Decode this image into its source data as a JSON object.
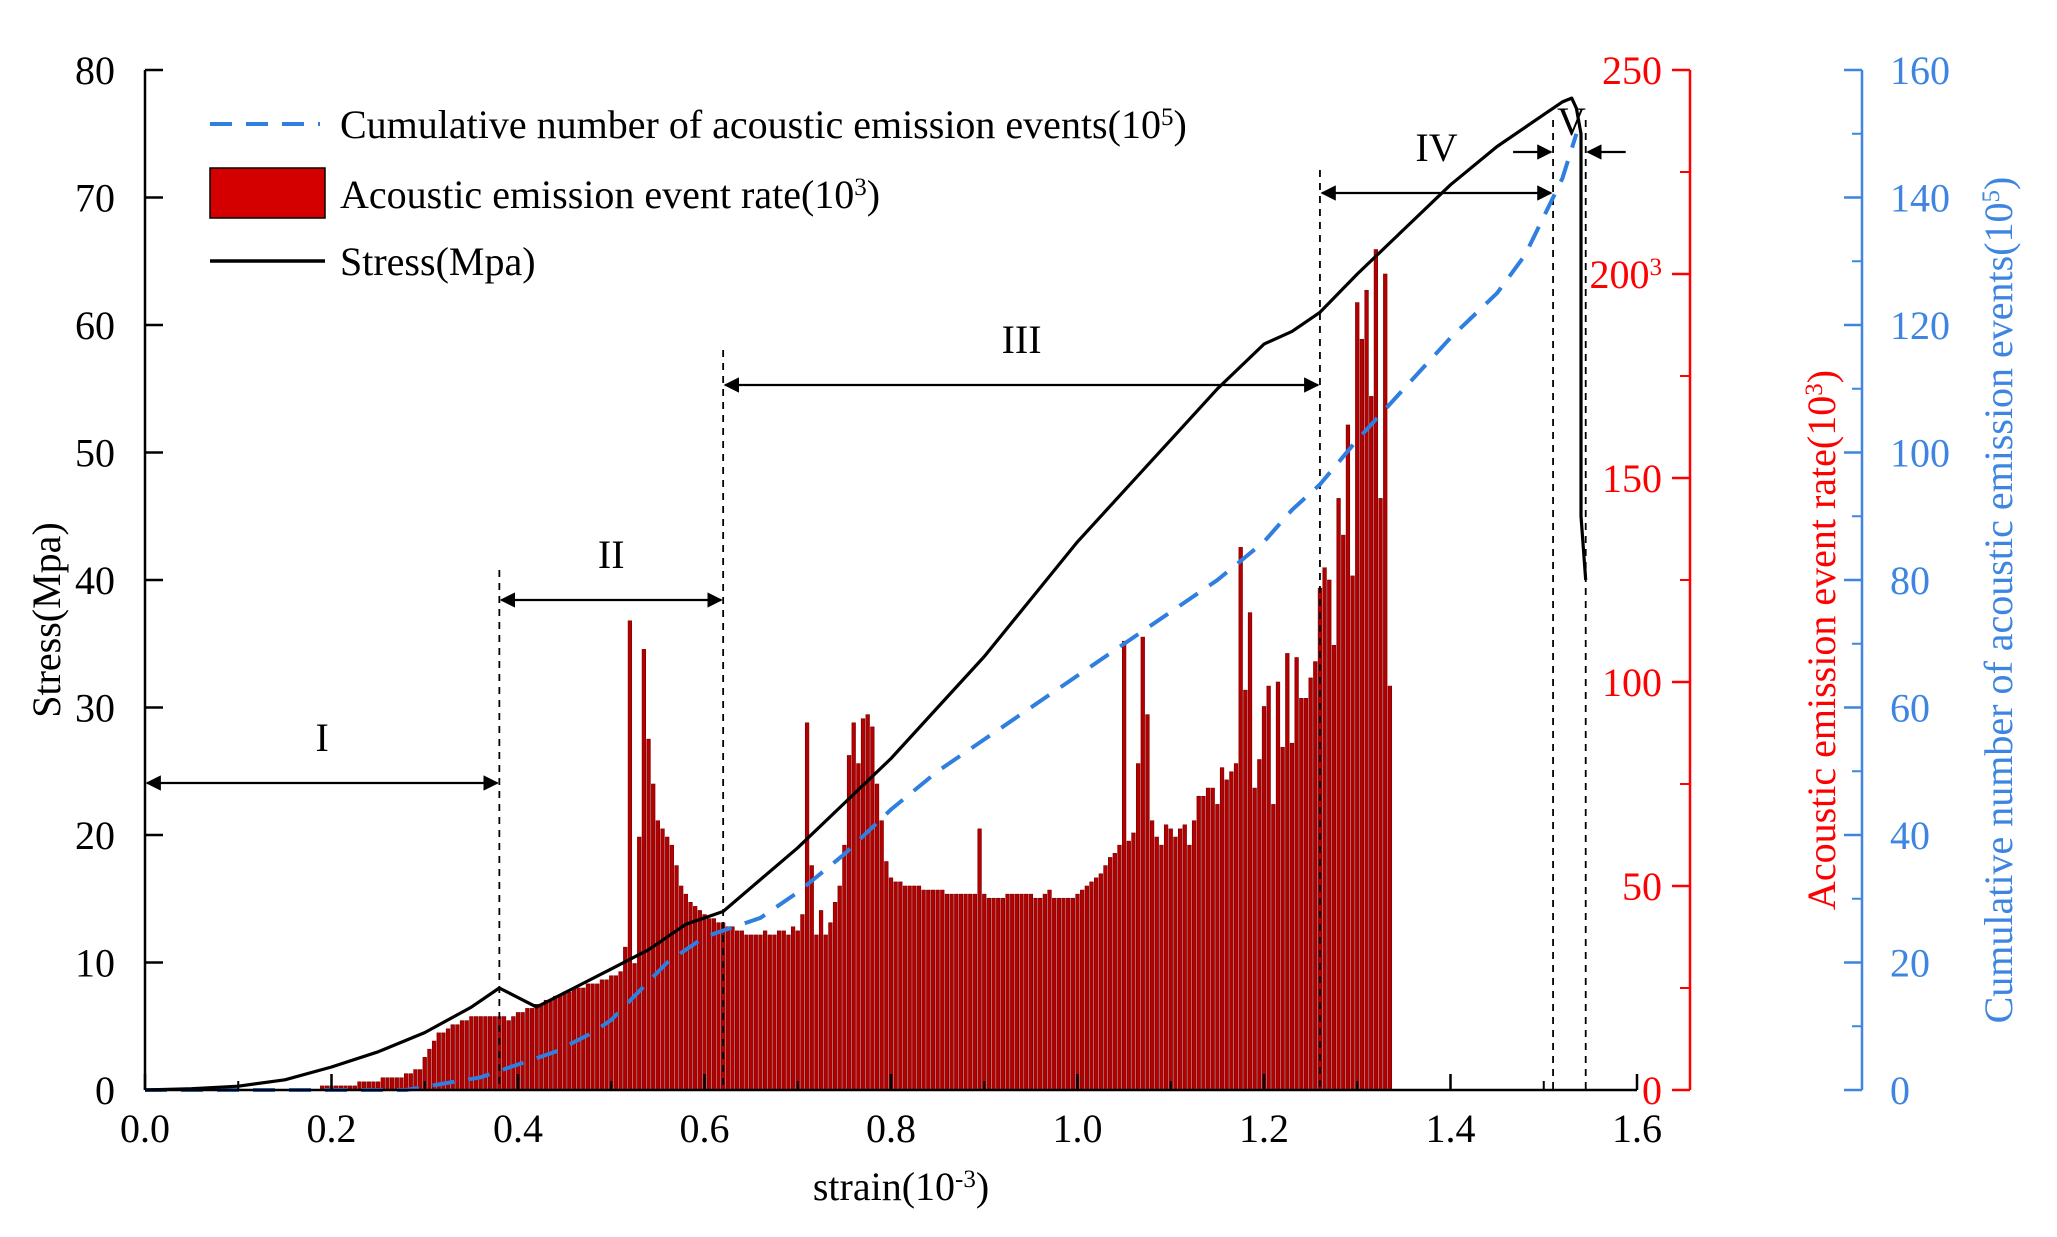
{
  "chart_data": {
    "type": "bar+line",
    "xlabel": "strain(10",
    "xlabel_exp": "-3",
    "xlabel_tail": ")",
    "xlim": [
      0,
      1.6
    ],
    "x_ticks": [
      "0.0",
      "0.2",
      "0.4",
      "0.6",
      "0.8",
      "1.0",
      "1.2",
      "1.4",
      "1.6"
    ],
    "x_tick_values": [
      0,
      0.2,
      0.4,
      0.6,
      0.8,
      1.0,
      1.2,
      1.4,
      1.6
    ],
    "axes": {
      "stress": {
        "label": "Stress(Mpa)",
        "ylim": [
          0,
          80
        ],
        "ticks": [
          "0",
          "10",
          "20",
          "30",
          "40",
          "50",
          "60",
          "70",
          "80"
        ],
        "tick_values": [
          0,
          10,
          20,
          30,
          40,
          50,
          60,
          70,
          80
        ],
        "color": "#000000"
      },
      "rate": {
        "label": "Acoustic emission event rate(10",
        "label_exp": "3",
        "label_tail": ")",
        "top_label": "200",
        "top_label_exp": "3",
        "ylim": [
          0,
          250
        ],
        "ticks": [
          "0",
          "50",
          "100",
          "150",
          "200",
          "250"
        ],
        "tick_values": [
          0,
          50,
          100,
          150,
          200,
          250
        ],
        "color": "#ff0000"
      },
      "cumulative": {
        "label": "Cumulative number of acoustic emission events(10",
        "label_exp": "5",
        "label_tail": ")",
        "ylim": [
          0,
          160
        ],
        "ticks": [
          "0",
          "20",
          "40",
          "60",
          "80",
          "100",
          "120",
          "140",
          "160"
        ],
        "tick_values": [
          0,
          20,
          40,
          60,
          80,
          100,
          120,
          140,
          160
        ],
        "color": "#3d85e0"
      }
    },
    "legend": [
      {
        "text": "Cumulative number of acoustic emission events(10",
        "exp": "5",
        "tail": ")",
        "kind": "dashed-line",
        "color": "#2f7fe0"
      },
      {
        "text": "Acoustic emission event rate(10",
        "exp": "3",
        "tail": ")",
        "kind": "bar",
        "color": "#d40000"
      },
      {
        "text": "Stress(Mpa)",
        "kind": "line",
        "color": "#000000"
      }
    ],
    "stages": [
      {
        "label": "I",
        "from": 0.0,
        "to": 0.38
      },
      {
        "label": "II",
        "from": 0.38,
        "to": 0.62
      },
      {
        "label": "III",
        "from": 0.62,
        "to": 1.26
      },
      {
        "label": "IV",
        "from": 1.26,
        "to": 1.51
      },
      {
        "label": "V",
        "from": 1.51,
        "to": 1.545
      }
    ],
    "series": [
      {
        "name": "Stress(Mpa)",
        "axis": "stress",
        "color": "#000000",
        "x": [
          0,
          0.05,
          0.1,
          0.15,
          0.2,
          0.25,
          0.3,
          0.35,
          0.38,
          0.42,
          0.46,
          0.5,
          0.54,
          0.58,
          0.62,
          0.66,
          0.7,
          0.75,
          0.8,
          0.85,
          0.9,
          0.95,
          1.0,
          1.05,
          1.1,
          1.15,
          1.2,
          1.23,
          1.26,
          1.3,
          1.35,
          1.4,
          1.45,
          1.5,
          1.52,
          1.53,
          1.535,
          1.54,
          1.54,
          1.545
        ],
        "y": [
          0,
          0.1,
          0.3,
          0.8,
          1.8,
          3.0,
          4.5,
          6.5,
          8.0,
          6.5,
          8.0,
          9.5,
          11.0,
          13.0,
          14.0,
          16.5,
          19.0,
          22.5,
          26.0,
          30.0,
          34.0,
          38.5,
          43.0,
          47.0,
          51.0,
          55.0,
          58.5,
          59.5,
          61.0,
          64.0,
          67.5,
          71.0,
          74.0,
          76.5,
          77.5,
          77.8,
          77.0,
          75.0,
          45.0,
          40.0
        ]
      },
      {
        "name": "Cumulative number of acoustic emission events(10^5)",
        "axis": "cumulative",
        "color": "#2f7fe0",
        "x": [
          0,
          0.1,
          0.2,
          0.28,
          0.32,
          0.36,
          0.4,
          0.44,
          0.48,
          0.5,
          0.52,
          0.56,
          0.6,
          0.62,
          0.66,
          0.7,
          0.75,
          0.8,
          0.85,
          0.9,
          0.95,
          1.0,
          1.05,
          1.1,
          1.15,
          1.2,
          1.23,
          1.26,
          1.3,
          1.35,
          1.4,
          1.45,
          1.48,
          1.5,
          1.52,
          1.535
        ],
        "y": [
          0,
          0,
          0,
          0,
          1,
          2,
          4,
          6,
          9,
          11,
          14,
          20,
          24,
          25,
          27,
          31,
          37,
          44,
          50,
          55,
          60,
          65,
          70,
          75,
          80,
          86,
          91,
          95,
          102,
          110,
          118,
          125,
          131,
          137,
          143,
          150
        ]
      },
      {
        "name": "Acoustic emission event rate(10^3)",
        "axis": "rate",
        "color": "#b30000",
        "x_start": 0.0,
        "x_step": 0.005,
        "values": [
          0,
          0,
          0,
          0,
          0,
          0,
          0,
          0,
          0,
          0,
          0,
          0,
          0,
          0,
          0,
          0,
          0,
          0,
          0,
          0,
          0,
          0,
          0,
          0,
          0,
          0,
          0,
          0,
          0,
          0,
          0,
          0,
          0,
          0,
          0,
          0,
          0,
          0,
          1,
          1,
          1,
          1,
          1,
          1,
          1,
          1,
          2,
          2,
          2,
          2,
          2,
          3,
          3,
          3,
          3,
          3,
          4,
          4,
          5,
          5,
          8,
          10,
          12,
          14,
          14,
          15,
          16,
          16,
          17,
          17,
          18,
          18,
          18,
          18,
          18,
          18,
          18,
          18,
          17,
          18,
          19,
          19,
          20,
          20,
          21,
          21,
          22,
          22,
          23,
          23,
          24,
          24,
          25,
          25,
          25,
          26,
          26,
          26,
          27,
          27,
          28,
          28,
          29,
          35,
          115,
          31,
          62,
          108,
          86,
          75,
          66,
          64,
          62,
          60,
          55,
          50,
          48,
          46,
          45,
          44,
          43,
          42,
          42,
          41,
          41,
          40,
          40,
          39,
          39,
          38,
          38,
          38,
          38,
          39,
          38,
          38,
          39,
          39,
          38,
          40,
          39,
          43,
          90,
          55,
          38,
          44,
          38,
          41,
          46,
          50,
          60,
          82,
          90,
          80,
          91,
          92,
          89,
          75,
          66,
          56,
          52,
          51,
          51,
          50,
          50,
          50,
          50,
          49,
          49,
          49,
          49,
          49,
          48,
          48,
          48,
          48,
          48,
          48,
          48,
          64,
          48,
          47,
          47,
          47,
          47,
          48,
          48,
          48,
          48,
          48,
          48,
          47,
          47,
          48,
          49,
          47,
          47,
          47,
          47,
          47,
          48,
          49,
          50,
          51,
          52,
          53,
          55,
          57,
          58,
          60,
          110,
          61,
          63,
          80,
          111,
          92,
          66,
          62,
          60,
          65,
          64,
          62,
          64,
          65,
          60,
          66,
          72,
          72,
          74,
          74,
          70,
          79,
          76,
          78,
          80,
          133,
          98,
          117,
          74,
          81,
          94,
          99,
          70,
          100,
          84,
          107,
          85,
          106,
          96,
          96,
          101,
          105,
          123,
          128,
          125,
          109,
          145,
          136,
          163,
          126,
          193,
          184,
          196,
          170,
          206,
          145,
          200,
          99
        ]
      }
    ]
  }
}
